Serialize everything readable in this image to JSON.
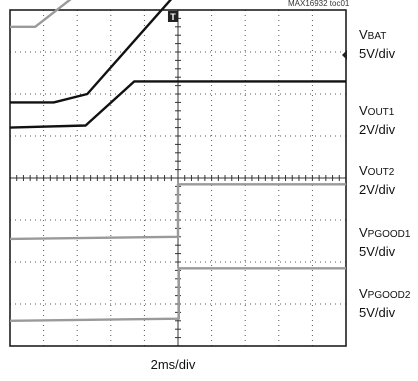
{
  "chart_data": {
    "type": "line",
    "title": "",
    "figure_tag": "MAX16932 toc01",
    "time_scale": "2ms/div",
    "grid": true,
    "divisions": {
      "x": 10,
      "y": 8
    },
    "xlim": [
      0,
      20
    ],
    "x_unit": "ms",
    "trigger_marker": "T",
    "series": [
      {
        "name_main": "V",
        "name_sub": "BAT",
        "scale": "5V/div",
        "color": "#9a9a9a",
        "points": [
          [
            0,
            3.6
          ],
          [
            1.5,
            3.6
          ],
          [
            6.0,
            5.0
          ],
          [
            13.5,
            7.4
          ],
          [
            20,
            7.4
          ]
        ]
      },
      {
        "name_main": "V",
        "name_sub": "OUT1",
        "scale": "2V/div",
        "color": "#111111",
        "points": [
          [
            0,
            1.8
          ],
          [
            2.6,
            1.8
          ],
          [
            4.6,
            2.0
          ],
          [
            9.8,
            4.35
          ],
          [
            20,
            4.35
          ]
        ]
      },
      {
        "name_main": "V",
        "name_sub": "OUT2",
        "scale": "2V/div",
        "color": "#111111",
        "points": [
          [
            0,
            1.2
          ],
          [
            4.5,
            1.25
          ],
          [
            7.4,
            2.3
          ],
          [
            20,
            2.3
          ]
        ]
      },
      {
        "name_main": "V",
        "name_sub": "PGOOD1",
        "scale": "5V/div",
        "color": "#9a9a9a",
        "points": [
          [
            0,
            -1.45
          ],
          [
            10.0,
            -1.4
          ],
          [
            10.0,
            -0.15
          ],
          [
            20,
            -0.15
          ]
        ]
      },
      {
        "name_main": "V",
        "name_sub": "PGOOD2",
        "scale": "5V/div",
        "color": "#9a9a9a",
        "points": [
          [
            0,
            -3.4
          ],
          [
            10.05,
            -3.35
          ],
          [
            10.05,
            -2.15
          ],
          [
            20,
            -2.15
          ]
        ]
      }
    ]
  }
}
